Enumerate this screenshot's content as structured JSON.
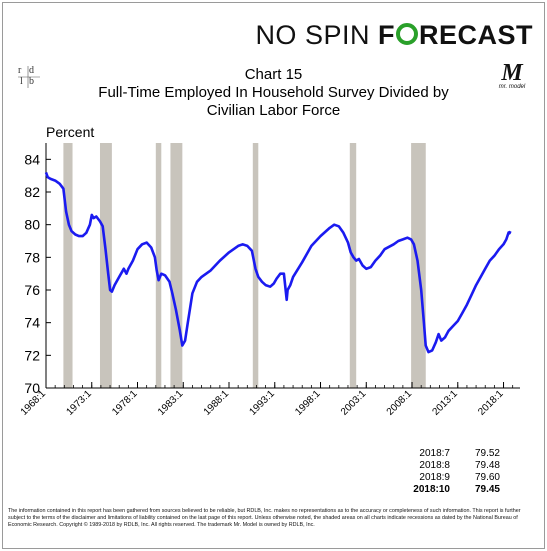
{
  "brand": {
    "part1": "NO SPIN",
    "part2_before": "F",
    "part2_after": "RECAST"
  },
  "logo_left": {
    "letters": [
      "r",
      "d",
      "l",
      "b"
    ]
  },
  "logo_right": {
    "letter": "M",
    "caption": "mr. model"
  },
  "chart_data": {
    "type": "line",
    "title_lines": [
      "Chart 15",
      "Full-Time Employed In Household Survey Divided by",
      "Civilian Labor Force"
    ],
    "ylabel": "Percent",
    "ylim": [
      70,
      85
    ],
    "yticks": [
      70,
      72,
      74,
      76,
      78,
      80,
      82,
      84
    ],
    "xlim": [
      1968.0,
      2019.8
    ],
    "xtick_values": [
      1968,
      1973,
      1978,
      1983,
      1988,
      1993,
      1998,
      2003,
      2008,
      2013,
      2018
    ],
    "xtick_labels": [
      "1968:1",
      "1973:1",
      "1978:1",
      "1983:1",
      "1988:1",
      "1993:1",
      "1998:1",
      "2003:1",
      "2008:1",
      "2013:1",
      "2018:1"
    ],
    "line_color": "#1b1bf0",
    "recession_color": "#c8c4bc",
    "recessions": [
      [
        1969.9,
        1970.9
      ],
      [
        1973.9,
        1975.2
      ],
      [
        1980.0,
        1980.6
      ],
      [
        1981.6,
        1982.9
      ],
      [
        1990.6,
        1991.2
      ],
      [
        2001.2,
        2001.9
      ],
      [
        2007.9,
        2009.5
      ]
    ],
    "series": [
      {
        "x": [
          1968.0,
          1968.2,
          1968.5,
          1969.0,
          1969.5,
          1969.9,
          1970.2,
          1970.5,
          1970.8,
          1971.2,
          1971.6,
          1972.0,
          1972.4,
          1972.8,
          1973.0,
          1973.2,
          1973.5,
          1973.9,
          1974.2,
          1974.5,
          1974.8,
          1975.0,
          1975.2,
          1975.5,
          1976.0,
          1976.5,
          1976.8,
          1977.0,
          1977.5,
          1978.0,
          1978.5,
          1979.0,
          1979.5,
          1979.9,
          1980.1,
          1980.3,
          1980.6,
          1981.0,
          1981.5,
          1981.8,
          1982.2,
          1982.6,
          1982.9,
          1983.2,
          1983.5,
          1984.0,
          1984.5,
          1985.0,
          1986.0,
          1987.0,
          1988.0,
          1989.0,
          1989.5,
          1990.0,
          1990.5,
          1990.9,
          1991.2,
          1991.6,
          1992.0,
          1992.5,
          1992.9,
          1993.2,
          1993.6,
          1994.0,
          1994.3,
          1994.4,
          1994.7,
          1995.0,
          1996.0,
          1997.0,
          1998.0,
          1999.0,
          1999.5,
          2000.0,
          2000.5,
          2001.0,
          2001.3,
          2001.6,
          2001.9,
          2002.2,
          2002.6,
          2003.0,
          2003.5,
          2004.0,
          2004.5,
          2005.0,
          2006.0,
          2006.5,
          2007.0,
          2007.5,
          2007.9,
          2008.2,
          2008.6,
          2009.0,
          2009.3,
          2009.5,
          2009.8,
          2010.2,
          2010.6,
          2010.9,
          2011.2,
          2011.6,
          2012.0,
          2012.5,
          2013.0,
          2013.5,
          2014.0,
          2014.5,
          2015.0,
          2015.5,
          2016.0,
          2016.5,
          2017.0,
          2017.5,
          2018.0,
          2018.3,
          2018.55,
          2018.65,
          2018.75
        ],
        "y": [
          83.2,
          82.9,
          82.8,
          82.7,
          82.5,
          82.2,
          80.8,
          80.0,
          79.6,
          79.4,
          79.3,
          79.3,
          79.5,
          80.0,
          80.6,
          80.4,
          80.5,
          80.2,
          79.9,
          78.5,
          77.0,
          76.0,
          75.9,
          76.3,
          76.8,
          77.3,
          77.0,
          77.3,
          77.8,
          78.5,
          78.8,
          78.9,
          78.6,
          78.0,
          77.2,
          76.6,
          77.0,
          76.9,
          76.5,
          75.8,
          74.8,
          73.6,
          72.6,
          72.9,
          74.0,
          75.8,
          76.5,
          76.8,
          77.2,
          77.8,
          78.3,
          78.7,
          78.8,
          78.7,
          78.4,
          77.3,
          76.8,
          76.5,
          76.3,
          76.2,
          76.4,
          76.7,
          77.0,
          77.0,
          75.4,
          76.0,
          76.3,
          76.8,
          77.7,
          78.7,
          79.3,
          79.8,
          80.0,
          79.9,
          79.5,
          78.9,
          78.3,
          78.0,
          77.8,
          77.9,
          77.5,
          77.3,
          77.4,
          77.8,
          78.1,
          78.5,
          78.8,
          79.0,
          79.1,
          79.2,
          79.1,
          78.8,
          77.8,
          76.0,
          74.0,
          72.6,
          72.2,
          72.3,
          72.8,
          73.3,
          72.9,
          73.1,
          73.5,
          73.8,
          74.1,
          74.6,
          75.1,
          75.7,
          76.3,
          76.8,
          77.3,
          77.8,
          78.1,
          78.5,
          78.8,
          79.1,
          79.52,
          79.48,
          79.6
        ]
      }
    ],
    "latest": [
      {
        "date": "2018:7",
        "value": "79.52"
      },
      {
        "date": "2018:8",
        "value": "79.48"
      },
      {
        "date": "2018:9",
        "value": "79.60"
      },
      {
        "date": "2018:10",
        "value": "79.45"
      }
    ]
  },
  "disclaimer": "The information contained in this report has been gathered from sources believed to be reliable, but RDLB, Inc. makes no representations as to the accuracy or completeness of such information. This report is further subject to the terms of the disclaimer and limitations of liability contained on the last page of this report. Unless otherwise noted, the shaded areas on all charts indicate recessions as dated by the National Bureau of Economic Research. Copyright © 1989-2018 by RDLB, Inc. All rights reserved. The trademark Mr. Model is owned by RDLB, Inc."
}
